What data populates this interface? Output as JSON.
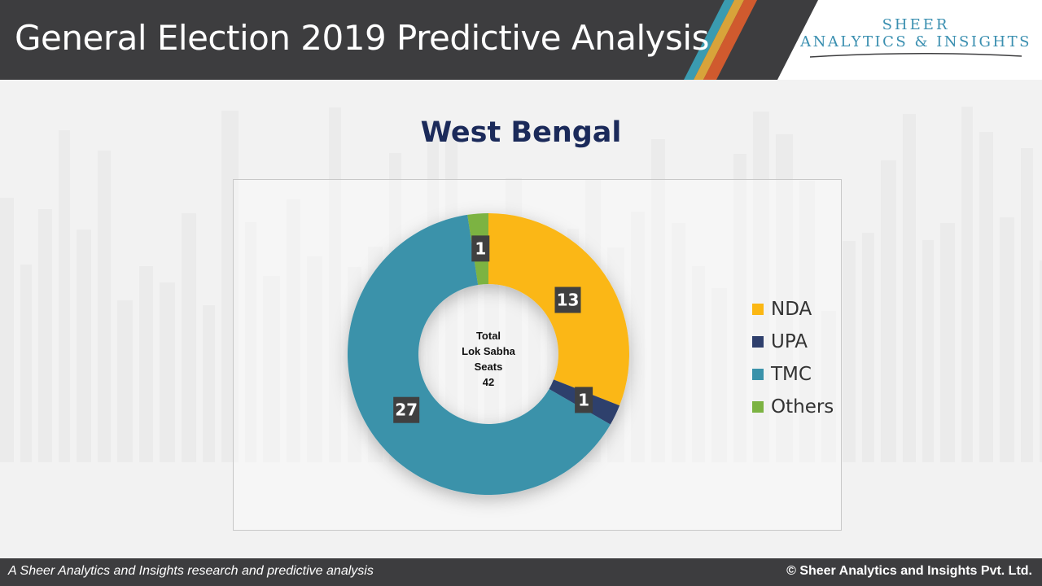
{
  "header": {
    "title": "General Election 2019 Predictive Analysis",
    "logo": {
      "line1": "SHEER",
      "line2": "ANALYTICS & INSIGHTS"
    }
  },
  "colors": {
    "header_bg": "#3d3d3f",
    "stripe1": "#3a9bb0",
    "stripe2": "#d8a33a",
    "stripe3": "#d05a2e",
    "title": "#1b2a5a"
  },
  "chart_data": {
    "type": "pie",
    "variant": "donut",
    "title": "West Bengal",
    "categories": [
      "NDA",
      "UPA",
      "TMC",
      "Others"
    ],
    "values": [
      13,
      1,
      27,
      1
    ],
    "colors": [
      "#fbb713",
      "#2e3f6c",
      "#3a92aa",
      "#7cb342"
    ],
    "center_text": [
      "Total",
      "Lok Sabha",
      "Seats",
      "42"
    ],
    "legend_position": "right",
    "data_labels": [
      "13",
      "1",
      "27",
      "1"
    ]
  },
  "footer": {
    "left": "A Sheer Analytics and Insights research and predictive analysis",
    "right": "© Sheer Analytics and Insights Pvt. Ltd."
  }
}
